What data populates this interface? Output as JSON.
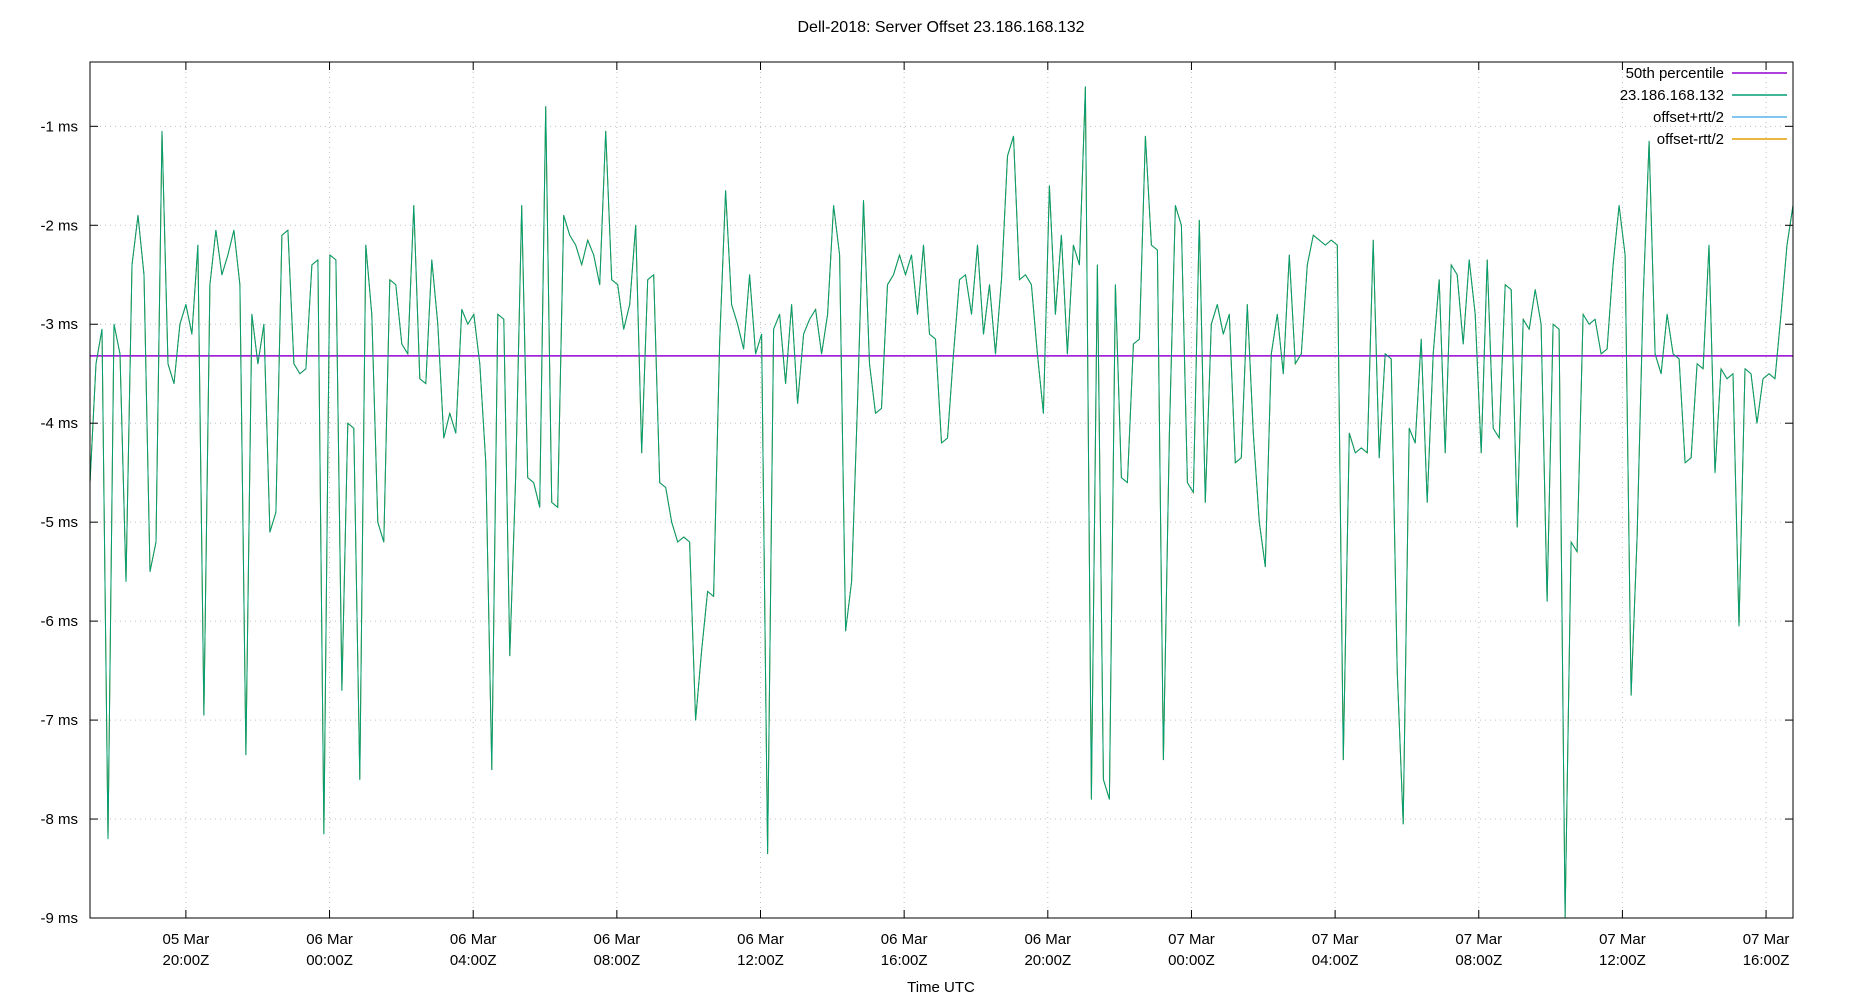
{
  "title": "Dell-2018: Server Offset 23.186.168.132",
  "xlabel": "Time UTC",
  "colors": {
    "background": "#ffffff",
    "border": "#000000",
    "grid": "#c0c0c0",
    "median": "#9400d3",
    "series_main": "#009e73",
    "series_offset_plus": "#56b4e9",
    "series_offset_minus": "#e69f00"
  },
  "legend": {
    "position": "top-right",
    "items": [
      {
        "label": "50th percentile",
        "color": "#9400d3"
      },
      {
        "label": "23.186.168.132",
        "color": "#009e73"
      },
      {
        "label": "offset+rtt/2",
        "color": "#56b4e9"
      },
      {
        "label": "offset-rtt/2",
        "color": "#e69f00"
      }
    ]
  },
  "chart_data": {
    "type": "line",
    "title": "Dell-2018: Server Offset 23.186.168.132",
    "xlabel": "Time UTC",
    "ylabel": "",
    "grid": "dotted",
    "legend_position": "top-right",
    "xlim_hours": [
      1.33,
      48.75
    ],
    "ylim": [
      -9,
      -0.35
    ],
    "y_ticks": [
      {
        "value": -1,
        "label": "-1 ms"
      },
      {
        "value": -2,
        "label": "-2 ms"
      },
      {
        "value": -3,
        "label": "-3 ms"
      },
      {
        "value": -4,
        "label": "-4 ms"
      },
      {
        "value": -5,
        "label": "-5 ms"
      },
      {
        "value": -6,
        "label": "-6 ms"
      },
      {
        "value": -7,
        "label": "-7 ms"
      },
      {
        "value": -8,
        "label": "-8 ms"
      },
      {
        "value": -9,
        "label": "-9 ms"
      }
    ],
    "x_ticks": [
      {
        "pos": 4,
        "date": "05 Mar",
        "time": "20:00Z"
      },
      {
        "pos": 8,
        "date": "06 Mar",
        "time": "00:00Z"
      },
      {
        "pos": 12,
        "date": "06 Mar",
        "time": "04:00Z"
      },
      {
        "pos": 16,
        "date": "06 Mar",
        "time": "08:00Z"
      },
      {
        "pos": 20,
        "date": "06 Mar",
        "time": "12:00Z"
      },
      {
        "pos": 24,
        "date": "06 Mar",
        "time": "16:00Z"
      },
      {
        "pos": 28,
        "date": "06 Mar",
        "time": "20:00Z"
      },
      {
        "pos": 32,
        "date": "07 Mar",
        "time": "00:00Z"
      },
      {
        "pos": 36,
        "date": "07 Mar",
        "time": "04:00Z"
      },
      {
        "pos": 40,
        "date": "07 Mar",
        "time": "08:00Z"
      },
      {
        "pos": 44,
        "date": "07 Mar",
        "time": "12:00Z"
      },
      {
        "pos": 48,
        "date": "07 Mar",
        "time": "16:00Z"
      }
    ],
    "series": [
      {
        "name": "50th percentile",
        "type": "hline",
        "color": "#9400d3",
        "value": -3.32
      },
      {
        "name": "offset+rtt/2",
        "type": "line",
        "color": "#56b4e9",
        "coincident_with": "23.186.168.132"
      },
      {
        "name": "offset-rtt/2",
        "type": "line",
        "color": "#e69f00",
        "coincident_with": "23.186.168.132"
      },
      {
        "name": "23.186.168.132",
        "type": "line",
        "color": "#009e73",
        "unit": "ms",
        "values": [
          -4.6,
          -3.4,
          -3.05,
          -8.2,
          -3.0,
          -3.3,
          -5.6,
          -2.4,
          -1.9,
          -2.5,
          -5.5,
          -5.2,
          -1.05,
          -3.4,
          -3.6,
          -3.0,
          -2.8,
          -3.1,
          -2.2,
          -6.95,
          -2.6,
          -2.05,
          -2.5,
          -2.3,
          -2.05,
          -2.6,
          -7.35,
          -2.9,
          -3.4,
          -3.0,
          -5.1,
          -4.9,
          -2.1,
          -2.05,
          -3.4,
          -3.5,
          -3.45,
          -2.4,
          -2.35,
          -8.15,
          -2.3,
          -2.35,
          -6.7,
          -4.0,
          -4.05,
          -7.6,
          -2.2,
          -2.9,
          -5.0,
          -5.2,
          -2.55,
          -2.6,
          -3.2,
          -3.3,
          -1.8,
          -3.55,
          -3.6,
          -2.35,
          -3.0,
          -4.15,
          -3.9,
          -4.1,
          -2.85,
          -3.0,
          -2.9,
          -3.4,
          -4.4,
          -7.5,
          -2.9,
          -2.95,
          -6.35,
          -4.5,
          -1.8,
          -4.55,
          -4.6,
          -4.85,
          -0.8,
          -4.8,
          -4.85,
          -1.9,
          -2.1,
          -2.2,
          -2.4,
          -2.15,
          -2.3,
          -2.6,
          -1.05,
          -2.55,
          -2.6,
          -3.05,
          -2.8,
          -2.0,
          -4.3,
          -2.55,
          -2.5,
          -4.6,
          -4.65,
          -5.0,
          -5.2,
          -5.15,
          -5.2,
          -7.0,
          -6.3,
          -5.7,
          -5.75,
          -3.2,
          -1.65,
          -2.8,
          -3.0,
          -3.25,
          -2.5,
          -3.3,
          -3.1,
          -8.35,
          -3.05,
          -2.9,
          -3.6,
          -2.8,
          -3.8,
          -3.1,
          -2.95,
          -2.85,
          -3.3,
          -2.9,
          -1.8,
          -2.3,
          -6.1,
          -5.6,
          -3.8,
          -1.75,
          -3.4,
          -3.9,
          -3.85,
          -2.6,
          -2.5,
          -2.3,
          -2.5,
          -2.3,
          -2.9,
          -2.2,
          -3.1,
          -3.15,
          -4.2,
          -4.15,
          -3.3,
          -2.55,
          -2.5,
          -2.9,
          -2.2,
          -3.1,
          -2.6,
          -3.3,
          -2.55,
          -1.3,
          -1.1,
          -2.55,
          -2.5,
          -2.6,
          -3.3,
          -3.9,
          -1.6,
          -2.9,
          -2.1,
          -3.3,
          -2.2,
          -2.4,
          -0.6,
          -7.8,
          -2.4,
          -7.6,
          -7.8,
          -2.6,
          -4.55,
          -4.6,
          -3.2,
          -3.15,
          -1.1,
          -2.2,
          -2.25,
          -7.4,
          -4.1,
          -1.8,
          -2.0,
          -4.6,
          -4.7,
          -1.95,
          -4.8,
          -3.0,
          -2.8,
          -3.1,
          -2.9,
          -4.4,
          -4.35,
          -2.8,
          -4.1,
          -5.0,
          -5.45,
          -3.3,
          -2.9,
          -3.5,
          -2.3,
          -3.4,
          -3.3,
          -2.4,
          -2.1,
          -2.15,
          -2.2,
          -2.15,
          -2.2,
          -7.4,
          -4.1,
          -4.3,
          -4.25,
          -4.3,
          -2.15,
          -4.35,
          -3.3,
          -3.35,
          -6.5,
          -8.05,
          -4.05,
          -4.2,
          -3.15,
          -4.8,
          -3.3,
          -2.55,
          -4.3,
          -2.4,
          -2.5,
          -3.2,
          -2.35,
          -2.9,
          -4.3,
          -2.35,
          -4.05,
          -4.15,
          -2.6,
          -2.65,
          -5.05,
          -2.95,
          -3.05,
          -2.65,
          -3.0,
          -5.8,
          -3.0,
          -3.05,
          -9.0,
          -5.2,
          -5.3,
          -2.9,
          -3.0,
          -2.95,
          -3.3,
          -3.25,
          -2.4,
          -1.8,
          -2.3,
          -6.75,
          -5.15,
          -2.75,
          -1.15,
          -3.3,
          -3.5,
          -2.9,
          -3.3,
          -3.35,
          -4.4,
          -4.35,
          -3.4,
          -3.45,
          -2.2,
          -4.5,
          -3.45,
          -3.55,
          -3.5,
          -6.05,
          -3.45,
          -3.5,
          -4.0,
          -3.55,
          -3.5,
          -3.55,
          -2.9,
          -2.2,
          -1.8
        ]
      }
    ]
  }
}
